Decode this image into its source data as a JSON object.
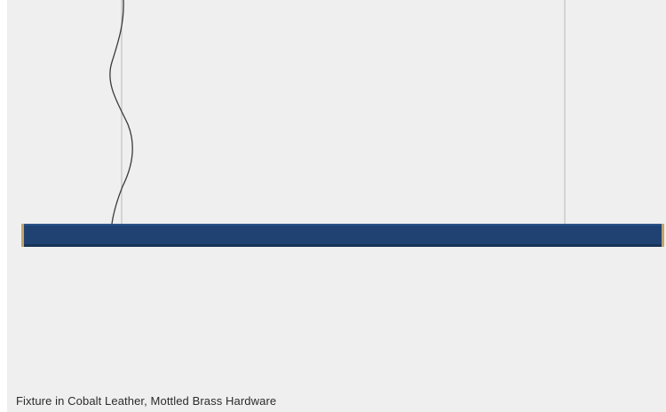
{
  "image": {
    "caption": "Fixture in Cobalt Leather, Mottled Brass Hardware",
    "colors": {
      "background": "#efefef",
      "leather": "#1f4272",
      "leather_shadow": "#173457",
      "brass": "#c2a46a",
      "cable": "#3a3a3a",
      "suspension_wire": "#b9b9b9"
    }
  }
}
